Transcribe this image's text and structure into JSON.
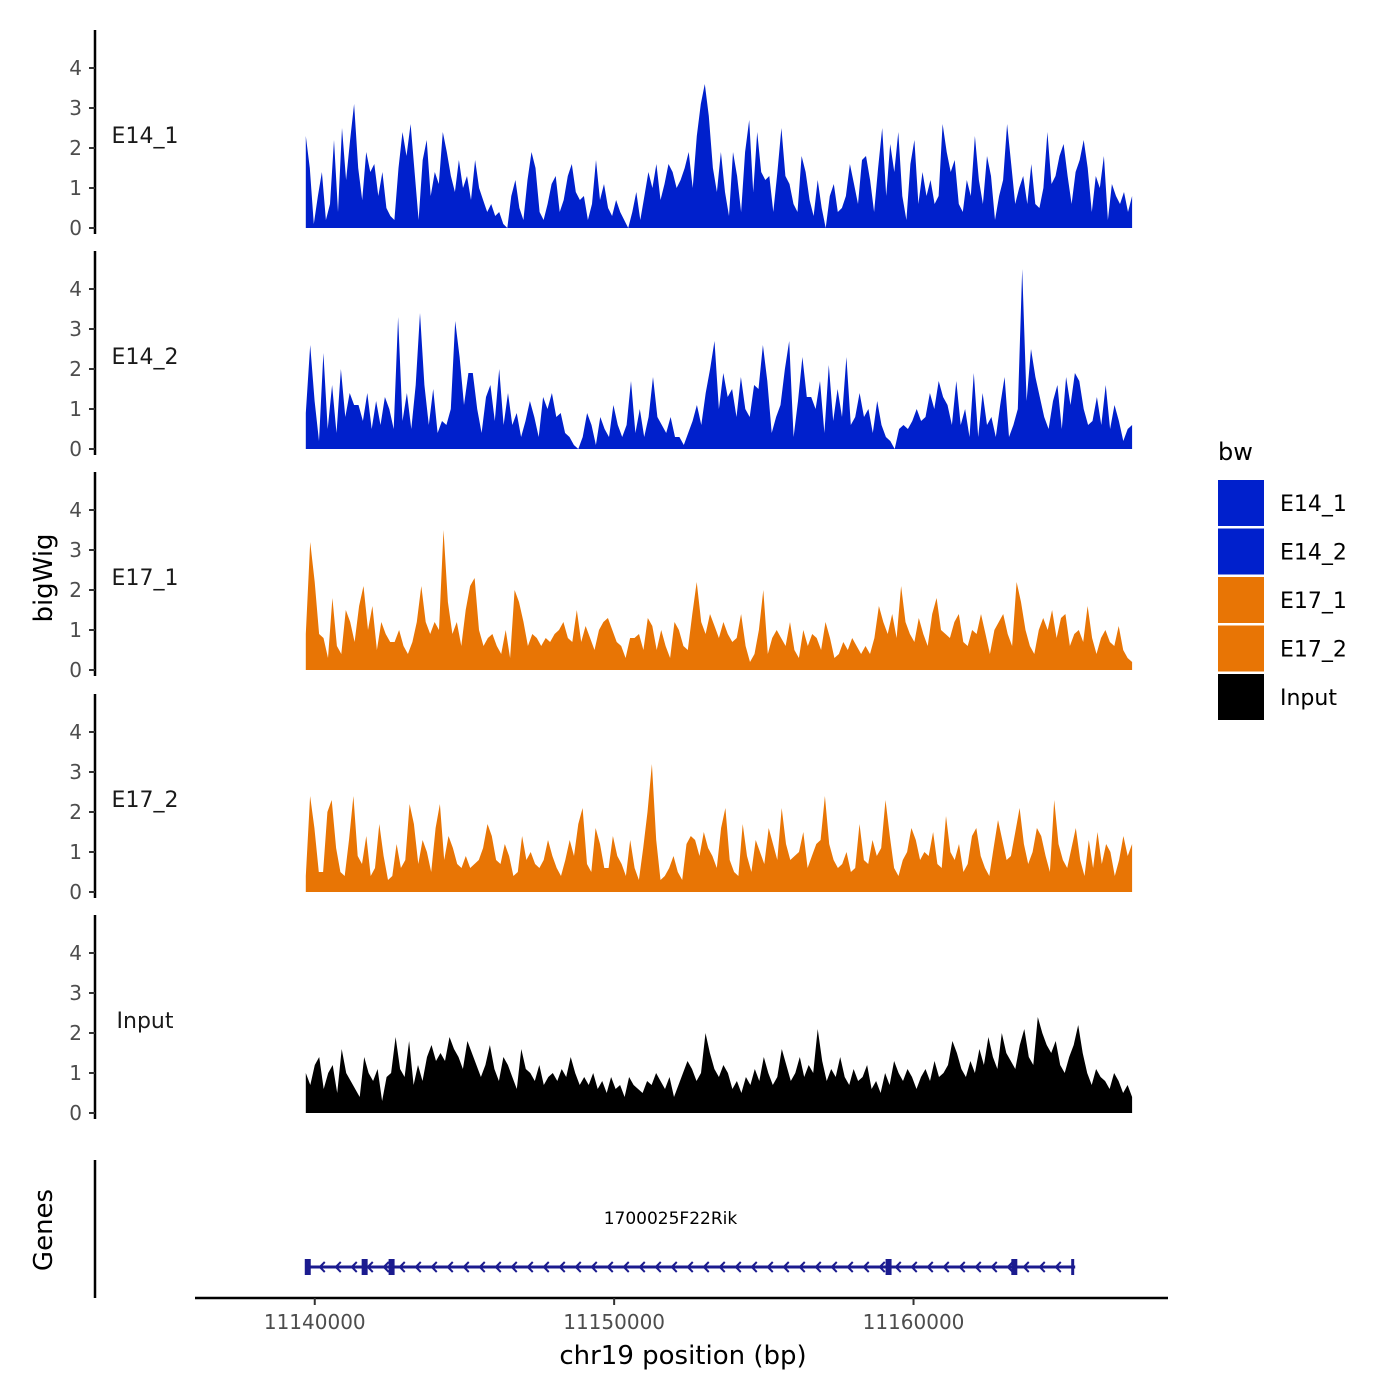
{
  "chart_data": {
    "type": "area",
    "title": "",
    "ylabel": "bigWig",
    "genes_label": "Genes",
    "xlabel": "chr19 position (bp)",
    "x_ticks": [
      11140000,
      11150000,
      11160000
    ],
    "x_tick_labels": [
      "11140000",
      "11150000",
      "11160000"
    ],
    "xlim": [
      11136000,
      11168500
    ],
    "ylim": [
      0,
      5
    ],
    "y_ticks": [
      0,
      1,
      2,
      3,
      4
    ],
    "y_tick_labels": [
      "0",
      "1",
      "2",
      "3",
      "4"
    ],
    "legend": {
      "title": "bw",
      "position": "right",
      "entries": [
        {
          "name": "E14_1",
          "color": "#0020CC"
        },
        {
          "name": "E14_2",
          "color": "#0020CC"
        },
        {
          "name": "E17_1",
          "color": "#E87505"
        },
        {
          "name": "E17_2",
          "color": "#E87505"
        },
        {
          "name": "Input",
          "color": "#000000"
        }
      ]
    },
    "track_x_range": [
      11139700,
      11167300
    ],
    "series": [
      {
        "name": "E14_1",
        "color": "#0020CC",
        "values": [
          2.3,
          1.5,
          0.1,
          0.8,
          1.4,
          0.2,
          0.6,
          2.2,
          0.4,
          2.5,
          1.2,
          2.2,
          3.1,
          1.5,
          0.7,
          1.9,
          1.4,
          1.6,
          0.8,
          1.4,
          0.5,
          0.3,
          0.2,
          1.5,
          2.4,
          1.8,
          2.6,
          1.4,
          0.2,
          1.7,
          2.2,
          0.8,
          1.4,
          1.1,
          2.4,
          1.9,
          1.3,
          0.9,
          1.7,
          1.0,
          1.3,
          0.7,
          1.7,
          1.0,
          0.7,
          0.4,
          0.6,
          0.3,
          0.4,
          0.1,
          0.0,
          0.8,
          1.2,
          0.5,
          0.2,
          1.2,
          1.9,
          1.5,
          0.4,
          0.2,
          0.6,
          1.1,
          1.3,
          0.4,
          0.7,
          1.3,
          1.6,
          0.9,
          0.7,
          0.8,
          0.2,
          0.6,
          1.7,
          0.7,
          1.1,
          0.5,
          0.3,
          0.7,
          0.4,
          0.2,
          0.0,
          0.4,
          0.9,
          0.2,
          0.8,
          1.4,
          1.0,
          1.6,
          0.7,
          1.1,
          1.6,
          1.4,
          1.0,
          1.2,
          1.5,
          1.9,
          1.0,
          2.3,
          3.1,
          3.6,
          2.8,
          1.5,
          0.9,
          1.9,
          0.9,
          0.3,
          1.9,
          1.3,
          0.4,
          1.9,
          2.7,
          0.9,
          2.4,
          1.4,
          1.2,
          1.3,
          0.4,
          1.4,
          2.5,
          1.3,
          1.1,
          0.6,
          0.4,
          1.8,
          1.4,
          0.7,
          0.3,
          1.2,
          0.5,
          0.0,
          0.8,
          1.1,
          0.4,
          0.5,
          0.8,
          1.6,
          1.1,
          0.6,
          1.7,
          1.8,
          1.2,
          0.4,
          1.5,
          2.5,
          0.8,
          2.1,
          1.4,
          2.4,
          0.8,
          0.2,
          1.6,
          2.2,
          0.6,
          1.4,
          0.8,
          1.2,
          0.6,
          0.8,
          2.6,
          1.9,
          1.4,
          1.7,
          0.6,
          0.4,
          1.2,
          0.8,
          2.3,
          1.2,
          0.6,
          1.8,
          1.3,
          0.2,
          0.8,
          1.2,
          2.6,
          1.6,
          0.6,
          1.0,
          1.3,
          0.6,
          1.6,
          0.6,
          0.5,
          1.0,
          2.4,
          1.1,
          1.3,
          1.8,
          2.1,
          1.3,
          0.6,
          1.4,
          1.7,
          2.2,
          1.5,
          0.4,
          1.3,
          1.0,
          1.8,
          0.2,
          1.1,
          0.8,
          0.6,
          0.9,
          0.4,
          0.8
        ]
      },
      {
        "name": "E14_2",
        "color": "#0020CC",
        "values": [
          0.9,
          2.6,
          1.2,
          0.2,
          2.4,
          0.5,
          1.6,
          0.4,
          2.0,
          0.8,
          1.4,
          1.1,
          1.1,
          0.7,
          1.4,
          0.5,
          1.2,
          0.6,
          1.3,
          1.0,
          0.5,
          3.3,
          0.7,
          1.4,
          0.5,
          1.6,
          3.4,
          1.6,
          0.6,
          1.5,
          0.4,
          0.7,
          0.6,
          1.0,
          3.2,
          2.3,
          1.1,
          1.9,
          1.9,
          1.0,
          0.4,
          1.3,
          1.6,
          0.7,
          2.0,
          0.6,
          1.4,
          0.6,
          0.9,
          0.3,
          0.7,
          1.2,
          0.8,
          0.3,
          1.3,
          1.0,
          1.4,
          0.8,
          0.9,
          0.4,
          0.3,
          0.1,
          0.0,
          0.3,
          0.9,
          0.6,
          0.1,
          0.8,
          0.5,
          0.3,
          1.1,
          0.6,
          0.3,
          0.6,
          1.7,
          0.4,
          1.0,
          0.3,
          0.8,
          1.8,
          0.8,
          0.6,
          0.4,
          0.8,
          0.3,
          0.3,
          0.1,
          0.4,
          0.7,
          1.1,
          0.6,
          1.4,
          2.0,
          2.7,
          1.0,
          1.9,
          1.3,
          1.5,
          0.8,
          1.8,
          1.0,
          0.8,
          1.6,
          1.5,
          2.6,
          1.7,
          0.4,
          0.8,
          1.1,
          2.0,
          2.7,
          0.3,
          1.2,
          2.3,
          1.3,
          1.3,
          1.0,
          1.7,
          0.4,
          2.1,
          0.7,
          1.5,
          0.8,
          2.3,
          0.6,
          0.8,
          1.4,
          0.8,
          1.0,
          0.4,
          1.2,
          0.6,
          0.3,
          0.2,
          0.0,
          0.5,
          0.6,
          0.5,
          0.7,
          1.0,
          0.7,
          0.8,
          1.4,
          1.0,
          1.7,
          1.3,
          1.1,
          0.6,
          1.7,
          0.6,
          1.0,
          0.3,
          1.9,
          0.3,
          1.4,
          0.6,
          0.8,
          0.3,
          1.1,
          1.8,
          0.3,
          0.6,
          1.0,
          4.5,
          1.2,
          2.5,
          1.8,
          1.3,
          0.8,
          0.5,
          1.2,
          1.6,
          0.5,
          1.8,
          1.1,
          1.9,
          1.7,
          1.0,
          0.6,
          0.7,
          1.3,
          0.6,
          1.6,
          0.5,
          1.1,
          0.7,
          0.2,
          0.5,
          0.6
        ]
      },
      {
        "name": "E17_1",
        "color": "#E87505",
        "values": [
          0.9,
          3.2,
          2.2,
          0.9,
          0.8,
          0.3,
          1.8,
          0.6,
          0.4,
          1.5,
          1.2,
          0.7,
          1.6,
          2.1,
          1.0,
          1.6,
          0.5,
          1.2,
          0.9,
          0.7,
          0.7,
          1.0,
          0.6,
          0.4,
          0.7,
          1.2,
          2.1,
          1.2,
          0.9,
          1.2,
          1.0,
          3.5,
          1.7,
          0.9,
          1.2,
          0.6,
          1.5,
          2.1,
          2.3,
          1.0,
          0.6,
          0.8,
          0.9,
          0.6,
          0.4,
          1.0,
          0.3,
          2.0,
          1.7,
          1.2,
          0.6,
          0.9,
          0.8,
          0.6,
          0.8,
          0.7,
          0.9,
          1.0,
          1.2,
          0.8,
          0.7,
          1.5,
          0.7,
          1.1,
          0.8,
          0.5,
          1.0,
          1.2,
          1.3,
          1.0,
          0.7,
          0.6,
          0.3,
          0.8,
          0.8,
          0.9,
          0.5,
          1.3,
          1.1,
          0.5,
          1.0,
          0.6,
          0.3,
          1.2,
          1.0,
          0.6,
          0.5,
          1.4,
          2.2,
          1.2,
          0.9,
          1.4,
          1.1,
          0.8,
          1.2,
          0.9,
          0.7,
          0.8,
          1.4,
          0.6,
          0.2,
          0.4,
          1.0,
          2.0,
          0.4,
          0.8,
          1.0,
          0.8,
          0.6,
          1.2,
          0.5,
          0.3,
          1.0,
          0.6,
          0.9,
          0.8,
          0.5,
          1.2,
          0.8,
          0.3,
          0.4,
          0.7,
          0.5,
          0.8,
          0.6,
          0.4,
          0.6,
          0.4,
          0.8,
          1.6,
          1.2,
          0.9,
          1.4,
          0.8,
          2.1,
          1.2,
          0.9,
          0.7,
          1.3,
          0.9,
          0.6,
          1.4,
          1.8,
          1.0,
          0.9,
          0.8,
          1.2,
          1.4,
          0.7,
          0.6,
          1.0,
          0.9,
          1.4,
          0.9,
          0.4,
          1.0,
          1.2,
          1.4,
          0.9,
          0.6,
          2.2,
          1.7,
          1.0,
          0.6,
          0.4,
          1.0,
          1.3,
          1.0,
          1.5,
          0.8,
          1.3,
          1.4,
          0.6,
          0.9,
          1.0,
          0.7,
          1.6,
          0.8,
          0.4,
          0.8,
          1.0,
          0.7,
          0.6,
          1.1,
          0.5,
          0.3,
          0.2
        ]
      },
      {
        "name": "E17_2",
        "color": "#E87505",
        "values": [
          0.4,
          2.4,
          1.6,
          0.5,
          0.5,
          2.0,
          2.3,
          1.1,
          0.5,
          0.4,
          1.3,
          2.4,
          0.9,
          0.7,
          1.4,
          0.4,
          0.6,
          1.7,
          0.9,
          0.3,
          0.4,
          1.2,
          0.6,
          0.8,
          2.2,
          1.7,
          0.7,
          1.3,
          1.0,
          0.5,
          1.6,
          2.2,
          0.8,
          1.4,
          1.1,
          0.7,
          0.6,
          0.9,
          0.6,
          0.7,
          0.8,
          1.1,
          1.7,
          1.4,
          0.8,
          0.7,
          1.2,
          0.9,
          0.4,
          0.5,
          1.4,
          0.8,
          1.0,
          0.7,
          0.6,
          0.8,
          1.3,
          0.9,
          0.6,
          0.4,
          0.8,
          1.3,
          0.9,
          1.7,
          2.1,
          0.7,
          0.5,
          1.6,
          1.2,
          0.6,
          0.6,
          1.4,
          0.9,
          0.7,
          0.4,
          1.3,
          0.6,
          0.3,
          1.1,
          2.0,
          3.2,
          1.3,
          0.3,
          0.4,
          0.6,
          0.9,
          0.5,
          0.3,
          1.2,
          1.4,
          1.3,
          0.9,
          1.5,
          1.1,
          0.9,
          0.6,
          1.6,
          2.1,
          0.8,
          0.5,
          0.4,
          1.7,
          0.9,
          0.5,
          1.3,
          1.0,
          0.7,
          1.6,
          1.2,
          0.8,
          2.1,
          1.2,
          0.8,
          0.9,
          1.0,
          1.5,
          0.6,
          0.9,
          1.2,
          1.3,
          2.4,
          1.2,
          0.8,
          0.6,
          0.7,
          1.0,
          0.5,
          0.6,
          1.7,
          0.8,
          0.7,
          1.3,
          0.9,
          1.1,
          2.3,
          1.4,
          0.6,
          0.4,
          0.8,
          1.0,
          1.6,
          1.3,
          0.8,
          1.0,
          0.9,
          1.5,
          0.7,
          0.6,
          1.9,
          1.0,
          0.8,
          1.2,
          0.5,
          0.7,
          1.4,
          1.6,
          0.9,
          0.6,
          0.4,
          1.1,
          1.8,
          1.3,
          0.8,
          0.9,
          1.5,
          2.1,
          1.2,
          0.7,
          1.0,
          1.6,
          1.4,
          0.9,
          0.5,
          2.3,
          1.2,
          0.8,
          0.6,
          1.1,
          1.6,
          0.8,
          0.4,
          1.3,
          0.6,
          1.5,
          0.7,
          1.2,
          1.0,
          0.4,
          0.8,
          1.4,
          0.9,
          1.2
        ]
      },
      {
        "name": "Input",
        "color": "#000000",
        "values": [
          1.0,
          0.7,
          1.2,
          1.4,
          0.6,
          1.0,
          1.2,
          0.5,
          1.6,
          1.0,
          0.8,
          0.6,
          0.4,
          1.4,
          1.0,
          0.8,
          1.1,
          0.3,
          0.9,
          1.0,
          1.9,
          1.1,
          0.9,
          1.8,
          0.7,
          1.2,
          0.8,
          1.4,
          1.7,
          1.3,
          1.5,
          1.3,
          1.9,
          1.6,
          1.4,
          1.1,
          1.8,
          1.5,
          1.2,
          0.9,
          1.2,
          1.7,
          1.1,
          0.8,
          1.4,
          1.2,
          0.9,
          0.6,
          1.6,
          1.1,
          1.0,
          0.8,
          1.2,
          0.7,
          0.9,
          1.0,
          0.8,
          1.1,
          0.9,
          1.4,
          1.0,
          0.7,
          0.9,
          0.7,
          1.0,
          0.6,
          0.8,
          0.5,
          0.9,
          0.6,
          0.7,
          0.4,
          0.9,
          0.7,
          0.6,
          0.5,
          0.8,
          0.7,
          1.0,
          0.8,
          0.6,
          0.9,
          0.4,
          0.7,
          1.0,
          1.3,
          1.1,
          0.8,
          1.0,
          2.0,
          1.5,
          1.1,
          0.9,
          1.2,
          1.0,
          0.6,
          0.8,
          0.5,
          0.9,
          0.7,
          1.1,
          0.8,
          1.4,
          1.0,
          0.7,
          0.9,
          1.6,
          1.2,
          0.8,
          1.0,
          1.4,
          0.9,
          1.2,
          1.0,
          2.1,
          1.3,
          0.8,
          1.1,
          0.9,
          1.4,
          0.9,
          0.7,
          1.1,
          0.8,
          0.9,
          1.2,
          0.6,
          0.8,
          0.5,
          1.0,
          0.7,
          1.3,
          1.0,
          0.8,
          1.1,
          0.9,
          0.6,
          0.9,
          1.1,
          0.8,
          1.3,
          0.9,
          1.0,
          1.2,
          1.8,
          1.5,
          1.1,
          0.9,
          1.3,
          1.0,
          1.6,
          1.2,
          1.9,
          1.4,
          1.1,
          2.0,
          1.5,
          1.3,
          1.1,
          1.7,
          2.1,
          1.4,
          1.2,
          2.4,
          2.0,
          1.7,
          1.5,
          1.8,
          1.2,
          1.0,
          1.4,
          1.7,
          2.2,
          1.5,
          1.0,
          0.7,
          1.1,
          0.9,
          0.8,
          0.6,
          1.0,
          0.8,
          0.5,
          0.7,
          0.4
        ]
      }
    ],
    "genes": [
      {
        "name": "1700025F22Rik",
        "start": 11139700,
        "end": 11165400,
        "strand": "-",
        "color": "#1B1B8F",
        "exons": [
          [
            11139700,
            11139900
          ],
          [
            11141600,
            11141800
          ],
          [
            11142500,
            11142700
          ],
          [
            11159100,
            11159300
          ],
          [
            11163300,
            11163500
          ],
          [
            11165300,
            11165400
          ]
        ]
      }
    ]
  }
}
